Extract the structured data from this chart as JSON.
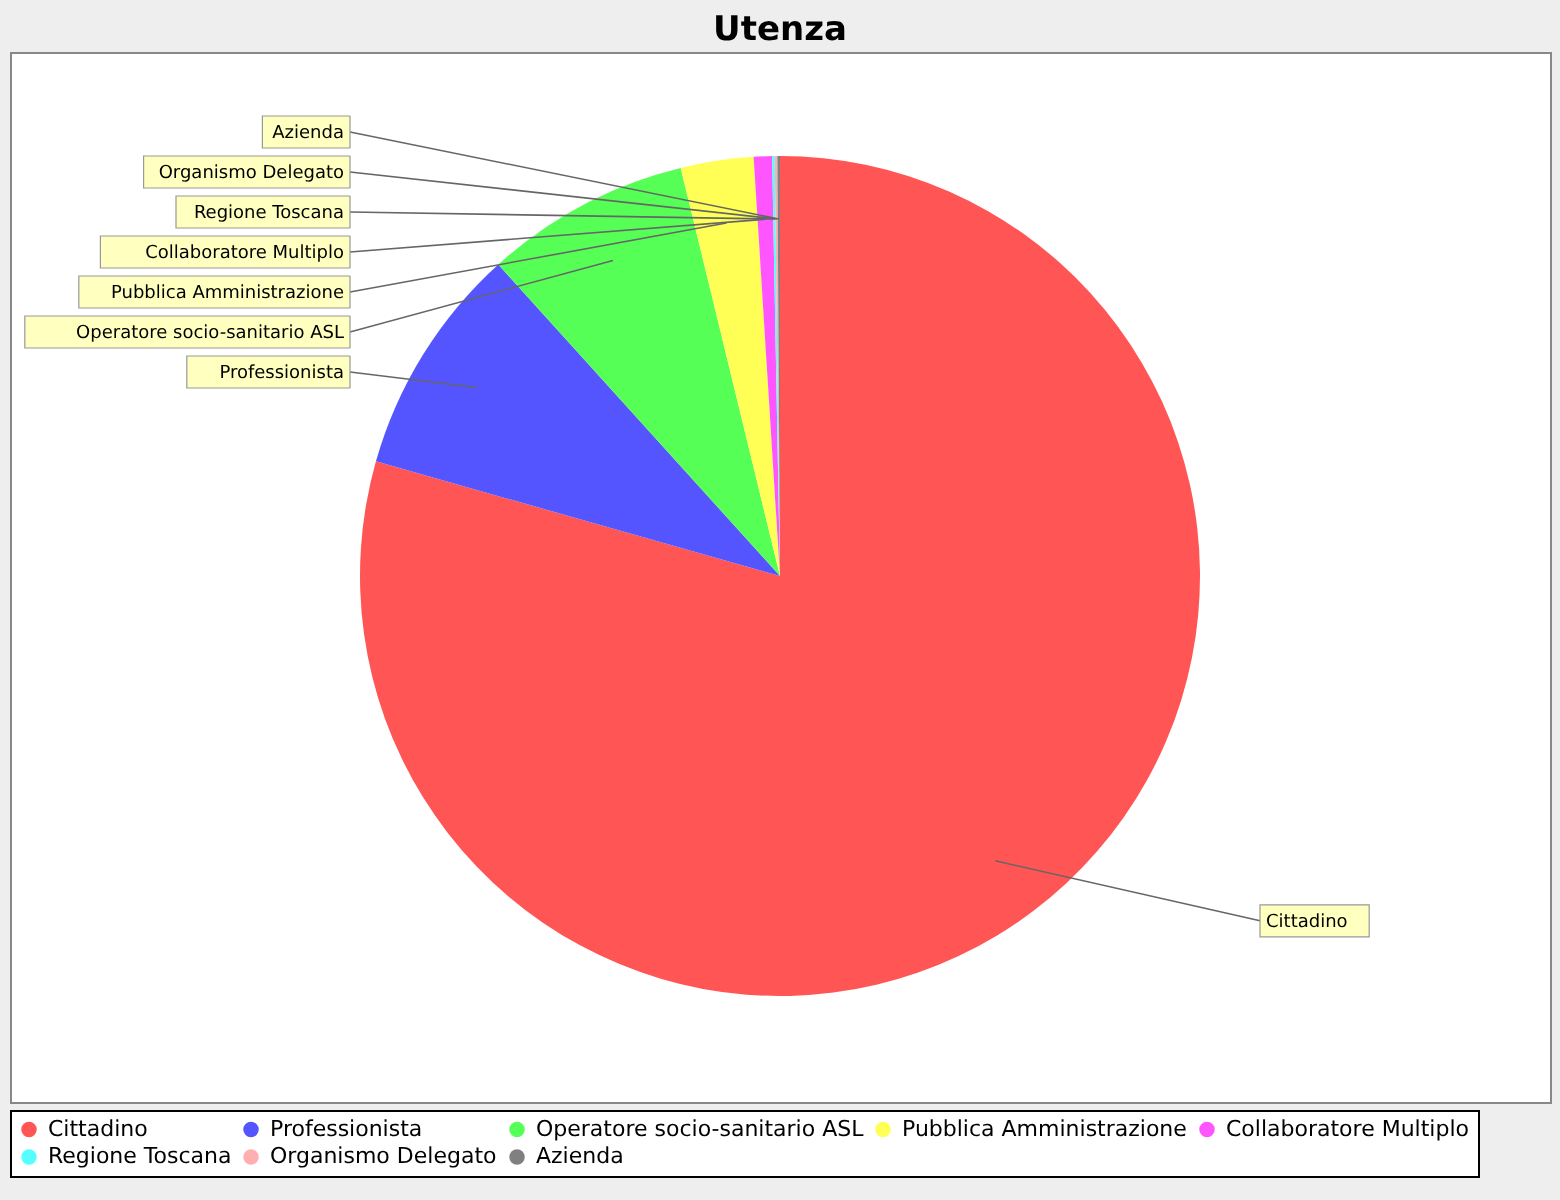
{
  "chart_data": {
    "type": "pie",
    "title": "Utenza",
    "categories": [
      "Cittadino",
      "Professionista",
      "Operatore socio-sanitario ASL",
      "Pubblica Amministrazione",
      "Collaboratore Multiplo",
      "Regione Toscana",
      "Organismo Delegato",
      "Azienda"
    ],
    "values": [
      79.4,
      8.9,
      7.9,
      2.8,
      0.7,
      0.1,
      0.1,
      0.1
    ],
    "colors": [
      "#ff5555",
      "#5555ff",
      "#55ff55",
      "#ffff55",
      "#ff55ff",
      "#55ffff",
      "#ffafaf",
      "#808080"
    ],
    "legend": "bottom"
  }
}
